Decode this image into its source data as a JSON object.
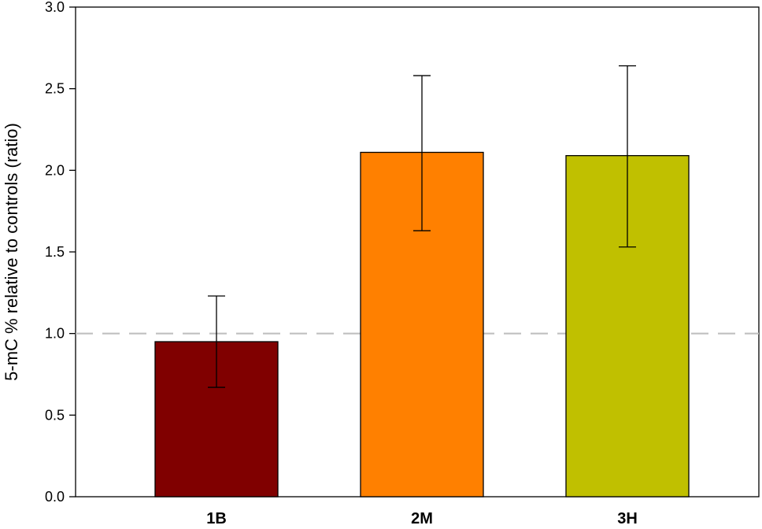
{
  "chart_data": {
    "type": "bar",
    "title": "",
    "xlabel": "",
    "ylabel": "5-mC % relative to controls (ratio)",
    "categories": [
      "1B",
      "2M",
      "3H"
    ],
    "values": [
      0.95,
      2.11,
      2.09
    ],
    "error_low": [
      0.67,
      1.63,
      1.53
    ],
    "error_high": [
      1.23,
      2.58,
      2.64
    ],
    "colors": [
      "#800000",
      "#ff8000",
      "#c0c000"
    ],
    "ylim": [
      0,
      3.0
    ],
    "yticks": [
      "0.0",
      "0.5",
      "1.0",
      "1.5",
      "2.0",
      "2.5",
      "3.0"
    ],
    "reference_line": 1.0,
    "reference_line_color": "#c0c0c0",
    "grid": false
  }
}
